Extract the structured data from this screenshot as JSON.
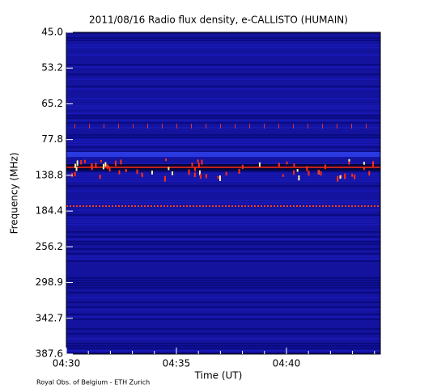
{
  "chart_data": {
    "type": "spectrogram",
    "title": "2011/08/16  Radio flux density, e-CALLISTO (HUMAIN)",
    "xlabel": "Time (UT)",
    "ylabel": "Frequency (MHz)",
    "footer": "Royal Obs. of Belgium - ETH Zurich",
    "xlim": [
      "04:30:00",
      "04:44:16"
    ],
    "xticks": [
      {
        "value": "04:30:00",
        "label": "04:30"
      },
      {
        "value": "04:35:00",
        "label": "04:35"
      },
      {
        "value": "04:40:00",
        "label": "04:40"
      }
    ],
    "ylim": [
      45,
      387.6
    ],
    "yticks": [
      {
        "value": 45,
        "label": "45.0"
      },
      53.2,
      65.2,
      77.8,
      138.8,
      184.4,
      256.2,
      298.9,
      342.7,
      387.6
    ],
    "yinverted": true
  }
}
